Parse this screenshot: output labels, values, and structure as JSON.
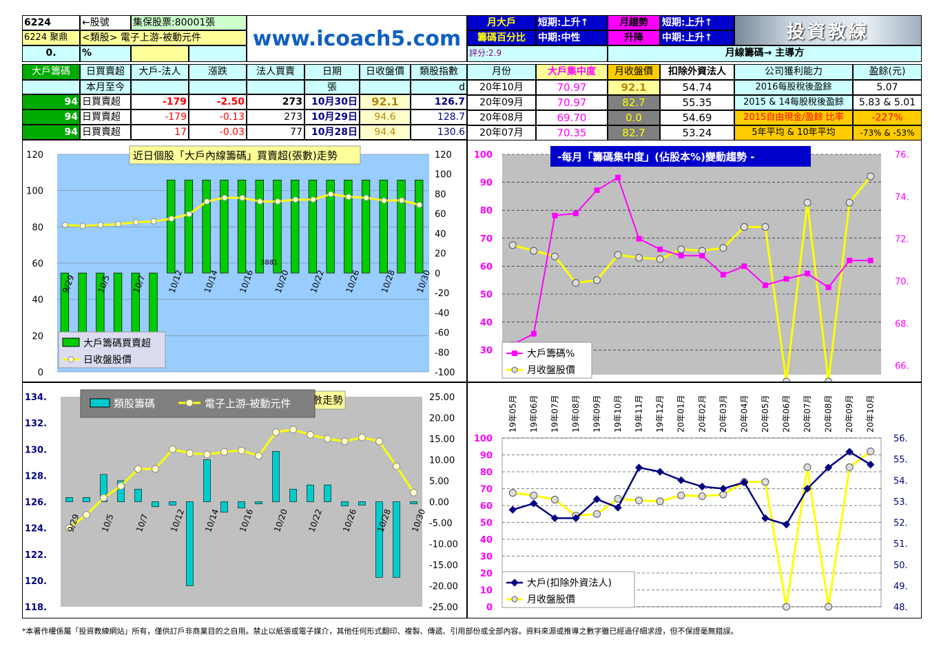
{
  "header": {
    "code": "6224",
    "code_arrow": "←股號",
    "tdcc": "集保股票:80001張",
    "name": "6224 聚鼎",
    "sector": "<類股> 電子上游-被動元件",
    "ratio_val": "0.",
    "pct_sym": "%",
    "site": "www.icoach5.com",
    "t1a": "月大戶",
    "t1b": "籌碼百分比",
    "t2a": "短期:上升↑",
    "t2b": "中期:中性",
    "t3a": "月趨勢",
    "t3b": "升降",
    "t4a": "短期:上升↑",
    "t4b": "中期:上升↑",
    "logo": "投資教練",
    "score": "評分:2.9",
    "leader": "月線籌碼→ 主導方"
  },
  "left_table": {
    "headers": [
      "大戶籌碼",
      "日買賣超",
      "大戶-法人",
      "漲跌",
      "法人買賣",
      "日期",
      "日收盤價",
      "類股指數"
    ],
    "unit_row": [
      "本月至今",
      "張",
      "d"
    ],
    "rows": [
      {
        "v": "94",
        "label": "日買賣超",
        "diff": "-179",
        "chg": "-2.50",
        "inst": "273",
        "date": "10月30日",
        "close": "92.1",
        "idx": "126.7"
      },
      {
        "v": "94",
        "label": "日買賣超",
        "diff": "-179",
        "chg": "-0.13",
        "inst": "273",
        "date": "10月29日",
        "close": "94.6",
        "idx": "128.7"
      },
      {
        "v": "94",
        "label": "日買賣超",
        "diff": "17",
        "chg": "-0.03",
        "inst": "77",
        "date": "10月28日",
        "close": "94.4",
        "idx": "130.6"
      }
    ]
  },
  "right_table": {
    "headers": [
      "月份",
      "大戶集中度",
      "月收盤價",
      "扣除外資法人",
      "公司獲利能力",
      "盈餘(元)"
    ],
    "rows": [
      {
        "m": "20年10月",
        "conc": "70.97",
        "close": "92.1",
        "ex": "54.74",
        "desc": "2016每股稅後盈餘",
        "eps": "5.07"
      },
      {
        "m": "20年09月",
        "conc": "70.97",
        "close": "82.7",
        "ex": "55.35",
        "desc": "2015 & 14每股稅後盈餘",
        "eps": "5.83 & 5.01"
      },
      {
        "m": "20年08月",
        "conc": "69.70",
        "close": "0.0",
        "ex": "54.69",
        "desc": "2015自由現金/盈餘 比率",
        "eps": "-227%"
      },
      {
        "m": "20年07月",
        "conc": "70.35",
        "close": "82.7",
        "ex": "53.24",
        "desc": "5年平均 & 10年平均",
        "eps": "-73% & -53%"
      }
    ]
  },
  "chart_data": [
    {
      "type": "bar",
      "title": "近日個股「大戶內線籌碼」買賣超(張數)走勢",
      "categories": [
        "09/29",
        "09/30",
        "10/5",
        "10/6",
        "10/7",
        "10/8",
        "10/12",
        "10/13",
        "10/14",
        "10/15",
        "10/16",
        "10/19",
        "10/20",
        "10/21",
        "10/22",
        "10/23",
        "10/26",
        "10/27",
        "10/28",
        "10/29",
        "10/30"
      ],
      "xticks": [
        "9/29",
        "10/5",
        "10/7",
        "10/12",
        "10/14",
        "10/16",
        "10/20",
        "10/22",
        "10/26",
        "10/28",
        "10/30"
      ],
      "series": [
        {
          "name": "大戶籌碼買賣超",
          "values": [
            -80,
            -80,
            -80,
            -80,
            -80,
            -80,
            94,
            94,
            94,
            94,
            94,
            94,
            94,
            94,
            94,
            94,
            94,
            94,
            94,
            94,
            94
          ]
        },
        {
          "name": "日收盤股價",
          "values": [
            81,
            80.5,
            81,
            81.5,
            82.5,
            83,
            84.5,
            87,
            94,
            96,
            96,
            94,
            94,
            95,
            95,
            98,
            96.5,
            96,
            94.5,
            94.6,
            92.1
          ]
        }
      ],
      "ylim_left": [
        0,
        120
      ],
      "ylim_right": [
        -100,
        120
      ],
      "annotation": "3881"
    },
    {
      "type": "line",
      "title": "-每月「籌碼集中度」(佔股本%)變動趨勢 -",
      "categories": [
        "19年05月",
        "19年06月",
        "19年07月",
        "19年08月",
        "19年09月",
        "19年10月",
        "19年11月",
        "19年12月",
        "20年01月",
        "20年02月",
        "20年03月",
        "20年04月",
        "20年05月",
        "20年06月",
        "20年07月",
        "20年08月",
        "20年09月",
        "20年10月"
      ],
      "series": [
        {
          "name": "大戶籌碼%",
          "values": [
            67,
            67.5,
            73.1,
            73.2,
            74.3,
            74.9,
            72,
            71.5,
            71.2,
            71.2,
            70.3,
            70.7,
            69.8,
            70.1,
            70.35,
            69.7,
            70.97,
            70.97
          ]
        },
        {
          "name": "月收盤股價",
          "values": [
            67.5,
            65.5,
            63.5,
            54,
            55,
            64,
            63,
            62.5,
            66,
            65.5,
            66.5,
            74,
            74,
            0,
            82.7,
            0,
            82.7,
            92.1
          ]
        }
      ],
      "ylim_left": [
        0,
        100
      ],
      "ylim_right": [
        64,
        76
      ]
    },
    {
      "type": "bar",
      "title": "類股指數走勢",
      "categories": [
        "09/29",
        "09/30",
        "10/5",
        "10/6",
        "10/7",
        "10/8",
        "10/12",
        "10/13",
        "10/14",
        "10/15",
        "10/16",
        "10/19",
        "10/20",
        "10/21",
        "10/22",
        "10/23",
        "10/26",
        "10/27",
        "10/28",
        "10/29",
        "10/30"
      ],
      "xticks": [
        "9/29",
        "10/5",
        "10/7",
        "10/12",
        "10/14",
        "10/16",
        "10/20",
        "10/22",
        "10/26",
        "10/28",
        "10/30"
      ],
      "series": [
        {
          "name": "類股籌碼",
          "values": [
            1,
            1,
            6.5,
            5,
            3,
            -1.2,
            -0.8,
            -20,
            10,
            -2.5,
            -1.5,
            -0.5,
            12,
            3,
            4,
            4,
            -1,
            -0.8,
            -18,
            -18,
            -0.5
          ]
        },
        {
          "name": "電子上游-被動元件",
          "values": [
            124,
            125,
            126.3,
            127.2,
            128.5,
            128.5,
            130,
            129.7,
            129.6,
            129.8,
            129.9,
            129.5,
            131.3,
            131.5,
            131.1,
            130.8,
            130.6,
            130.9,
            130.6,
            128.7,
            126.7
          ]
        }
      ],
      "ylim_left": [
        118,
        134
      ],
      "ylim_right": [
        -25,
        25
      ]
    },
    {
      "type": "line",
      "title": "",
      "categories": [
        "19年05月",
        "19年06月",
        "19年07月",
        "19年08月",
        "19年09月",
        "19年10月",
        "19年11月",
        "19年12月",
        "20年01月",
        "20年02月",
        "20年03月",
        "20年04月",
        "20年05月",
        "20年06月",
        "20年07月",
        "20年08月",
        "20年09月",
        "20年10月"
      ],
      "series": [
        {
          "name": "大戶(扣除外資法人)",
          "values": [
            52.6,
            52.9,
            52.2,
            52.2,
            53.1,
            52.7,
            54.6,
            54.4,
            54.0,
            53.7,
            53.6,
            53.9,
            52.2,
            51.9,
            53.6,
            54.6,
            55.35,
            54.74
          ]
        },
        {
          "name": "月收盤股價",
          "values": [
            67.5,
            66,
            63.5,
            54,
            55,
            64,
            63,
            62.5,
            66,
            65.5,
            66.5,
            74,
            74,
            0,
            82.7,
            0,
            82.7,
            92.1
          ]
        }
      ],
      "ylim_left": [
        0,
        100
      ],
      "ylim_right": [
        48,
        56
      ]
    }
  ],
  "legend": {
    "c1a": "大戶籌碼買賣超",
    "c1b": "日收盤股價",
    "c2a": "大戶籌碼%",
    "c2b": "月收盤股價",
    "c3a": "類股籌碼",
    "c3b": "電子上游-被動元件",
    "c4a": "大戶(扣除外資法人)",
    "c4b": "月收盤股價"
  },
  "footer": "*本著作權係屬「投資教練網站」所有，僅供訂戶非商業目的之自用。禁止以紙張或電子媒介，其他任何形式翻印、複製、傳遞、引用部份或全部內容。資料來源或推導之數字雖已經過仔細求證，但不保證毫無錯誤。"
}
